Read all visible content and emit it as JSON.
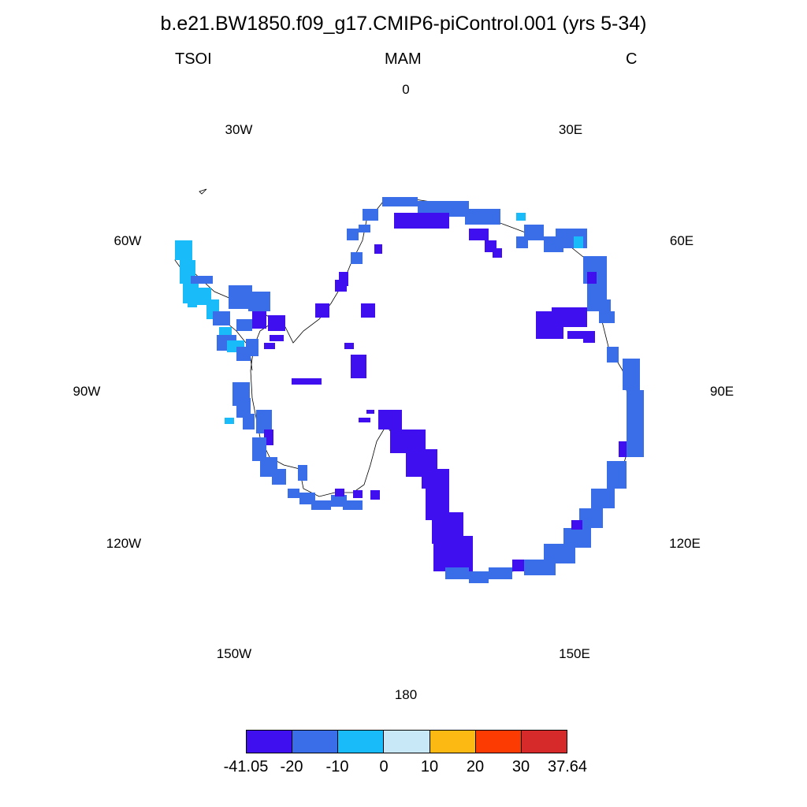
{
  "header": {
    "title": "b.e21.BW1850.f09_g17.CMIP6-piControl.001 (yrs 5-34)",
    "left": "TSOI",
    "center": "MAM",
    "right": "C"
  },
  "longitudes": [
    "0",
    "30E",
    "60E",
    "90E",
    "120E",
    "150E",
    "180",
    "150W",
    "120W",
    "90W",
    "60W",
    "30W"
  ],
  "colorbar": {
    "labels": [
      "-41.05",
      "-20",
      "-10",
      "0",
      "10",
      "20",
      "30",
      "37.64"
    ],
    "colors": [
      "#3f0ff0",
      "#3a6ee8",
      "#19bcf8",
      "#c8e7f7",
      "#fdb913",
      "#fc3b02",
      "#d62a2a"
    ]
  },
  "map_colors": {
    "deep": "#3f0ff0",
    "mid": "#3a6ee8",
    "light": "#19bcf8",
    "coast": "#000000"
  }
}
